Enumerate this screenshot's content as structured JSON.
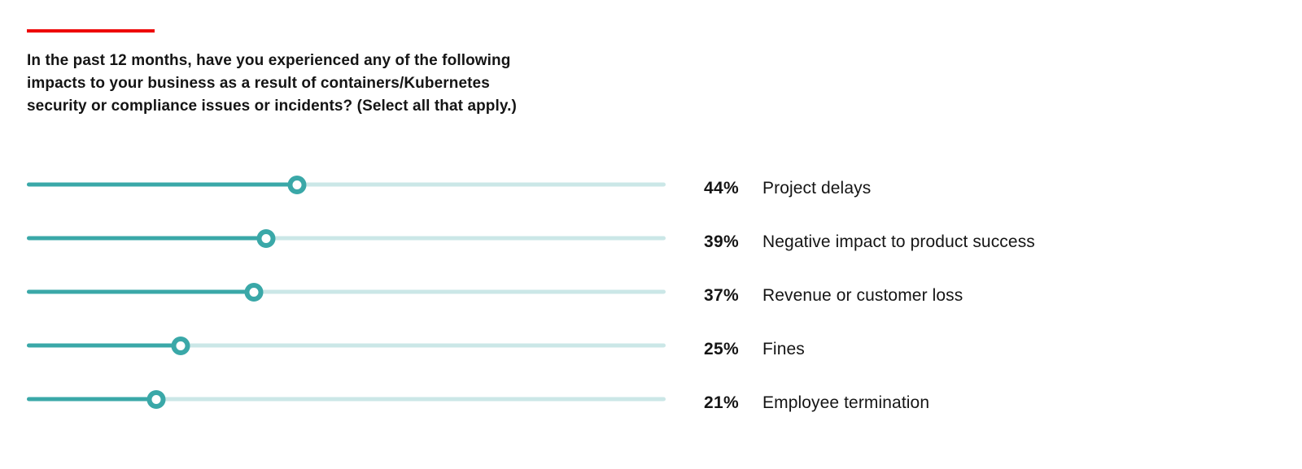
{
  "colors": {
    "accent_red": "#EE0000",
    "bar_fill": "#3AA8A8",
    "bar_track": "#CBE7E7",
    "text": "#151515",
    "background": "#FFFFFF"
  },
  "question": {
    "lines": [
      "In the past 12 months, have you experienced any of the following",
      "impacts to your business as a result of containers/Kubernetes",
      "security or compliance issues or incidents? (Select all that apply.)"
    ]
  },
  "chart_data": {
    "type": "bar",
    "orientation": "horizontal",
    "style": "lollipop-slider",
    "title": "In the past 12 months, have you experienced any of the following impacts to your business as a result of containers/Kubernetes security or compliance issues or incidents? (Select all that apply.)",
    "categories": [
      "Project delays",
      "Negative impact to product success",
      "Revenue or customer loss",
      "Fines",
      "Employee termination"
    ],
    "values": [
      44,
      39,
      37,
      25,
      21
    ],
    "value_labels": [
      "44%",
      "39%",
      "37%",
      "25%",
      "21%"
    ],
    "unit": "%",
    "xlim": [
      0,
      104
    ],
    "grid": false,
    "legend": false,
    "marker": "ring"
  }
}
